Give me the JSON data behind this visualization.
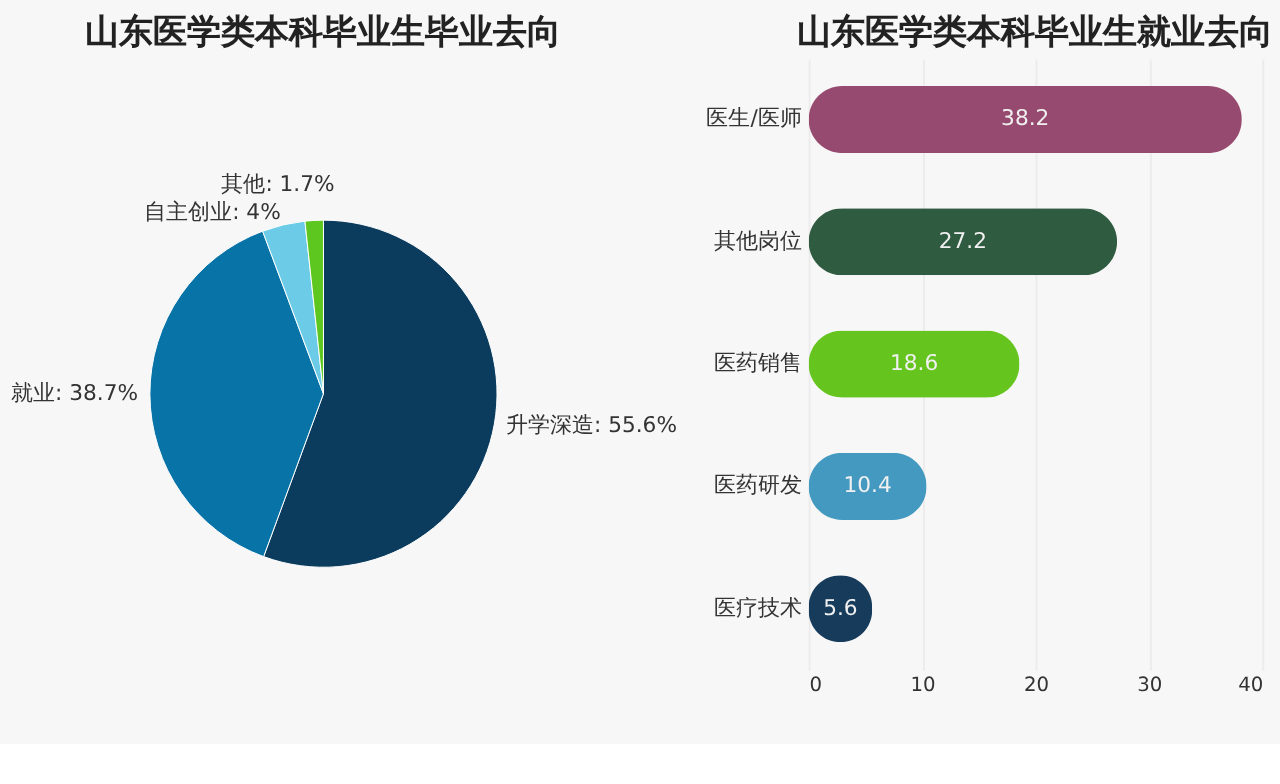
{
  "chart_data": [
    {
      "type": "pie",
      "title": "山东医学类本科毕业生毕业去向",
      "categories": [
        "升学深造",
        "就业",
        "自主创业",
        "其他"
      ],
      "values": [
        55.6,
        38.7,
        4,
        1.7
      ],
      "value_labels": [
        "55.6%",
        "38.7%",
        "4%",
        "1.7%"
      ],
      "colors": [
        "#0b3c5d",
        "#0873a6",
        "#6ccbe6",
        "#5ec71f"
      ],
      "legend": false
    },
    {
      "type": "bar",
      "orientation": "horizontal",
      "title": "山东医学类本科毕业生就业去向",
      "categories": [
        "医生/医师",
        "其他岗位",
        "医药销售",
        "医药研发",
        "医疗技术"
      ],
      "values": [
        38.2,
        27.2,
        18.6,
        10.4,
        5.6
      ],
      "colors": [
        "#974a6f",
        "#2f5b40",
        "#65c41e",
        "#4499c0",
        "#163b5b"
      ],
      "xlim": [
        0,
        40
      ],
      "xticks": [
        0,
        10,
        20,
        30,
        40
      ],
      "grid": "x",
      "data_labels": true
    }
  ]
}
